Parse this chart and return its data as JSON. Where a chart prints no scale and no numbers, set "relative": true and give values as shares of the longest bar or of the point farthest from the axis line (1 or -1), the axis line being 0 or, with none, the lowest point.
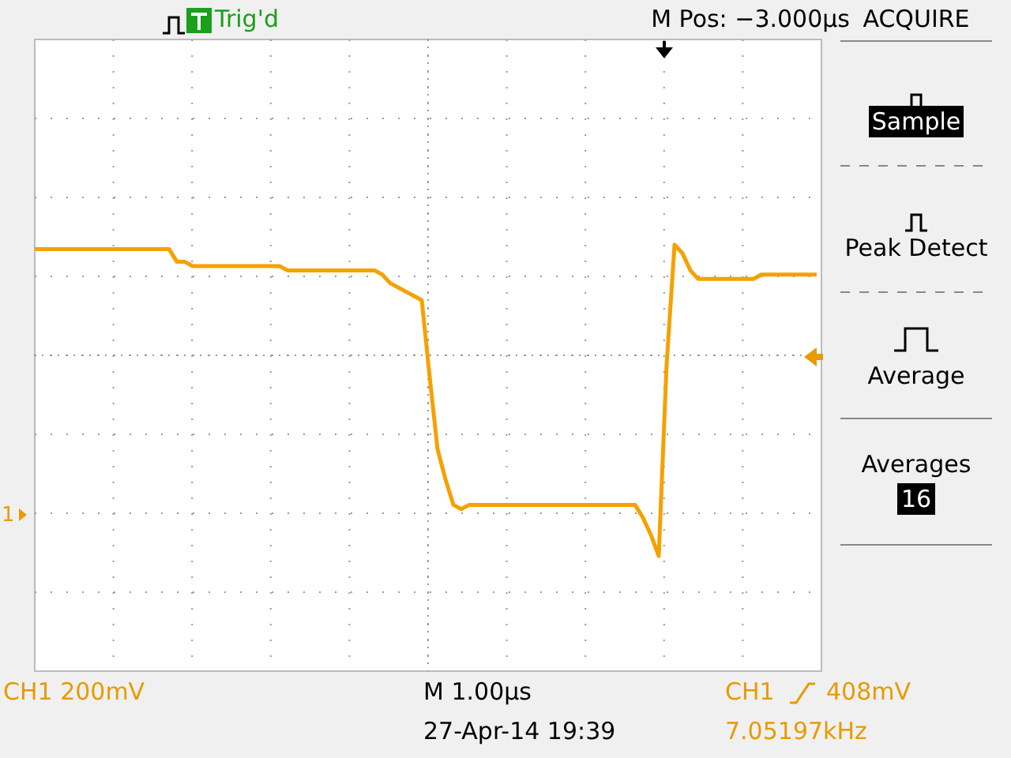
{
  "chart_data": {
    "type": "line",
    "relative": true,
    "grid": true,
    "marker": "none",
    "line_style": "solid",
    "annotations": [
      "Trig'd",
      "M Pos: −3.000µs",
      "ACQUIRE",
      "Sample",
      "Peak Detect",
      "Average",
      "Averages",
      "16",
      "CH1  200mV",
      "M 1.00µs",
      "27-Apr-14 19:39",
      "CH1",
      "408mV",
      "7.05197kHz",
      "1"
    ],
    "categories": [
      null,
      null,
      null,
      null,
      null,
      null,
      null,
      null,
      null,
      null,
      null,
      null,
      null,
      null,
      null,
      null,
      null,
      null,
      null,
      null,
      null,
      null,
      null,
      null,
      null,
      null,
      null,
      null,
      null,
      null,
      null,
      null,
      null,
      null,
      null,
      null,
      null,
      null,
      null,
      null,
      null,
      null,
      null,
      null,
      null,
      null,
      null,
      null,
      null,
      null,
      null,
      null,
      null,
      null,
      null,
      null,
      null,
      null,
      null,
      null,
      null,
      null,
      null,
      null,
      null,
      null,
      null,
      null,
      null,
      null,
      null,
      null,
      null,
      null,
      null,
      null,
      null,
      null,
      null,
      null,
      null,
      null,
      null,
      null,
      null,
      null,
      null,
      null,
      null,
      null,
      null,
      null,
      null,
      null,
      null,
      null,
      null,
      null,
      null,
      null
    ],
    "series": [
      {
        "color": "#f5a100",
        "values": [
          0.99,
          0.99,
          0.99,
          0.99,
          0.99,
          0.99,
          0.99,
          0.99,
          0.99,
          0.99,
          0.99,
          0.99,
          0.99,
          0.99,
          0.99,
          0.99,
          0.99,
          0.99,
          0.96,
          0.96,
          0.95,
          0.95,
          0.95,
          0.95,
          0.95,
          0.95,
          0.95,
          0.95,
          0.95,
          0.95,
          0.95,
          0.95,
          0.94,
          0.94,
          0.94,
          0.94,
          0.94,
          0.94,
          0.94,
          0.94,
          0.94,
          0.94,
          0.94,
          0.94,
          0.93,
          0.91,
          0.9,
          0.89,
          0.88,
          0.87,
          0.69,
          0.52,
          0.45,
          0.39,
          0.38,
          0.39,
          0.39,
          0.39,
          0.39,
          0.39,
          0.39,
          0.39,
          0.39,
          0.39,
          0.39,
          0.39,
          0.39,
          0.39,
          0.39,
          0.39,
          0.39,
          0.39,
          0.39,
          0.39,
          0.39,
          0.39,
          0.39,
          0.36,
          0.32,
          0.27,
          0.72,
          1,
          0.98,
          0.94,
          0.92,
          0.92,
          0.92,
          0.92,
          0.92,
          0.92,
          0.92,
          0.92,
          0.93,
          0.93,
          0.93,
          0.93,
          0.93,
          0.93,
          0.93,
          0.93
        ]
      }
    ]
  }
}
